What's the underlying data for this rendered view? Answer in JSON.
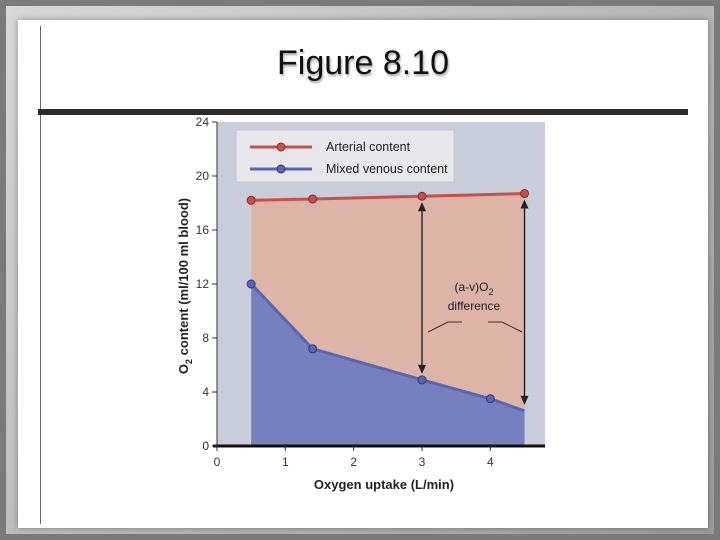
{
  "slide": {
    "title": "Figure 8.10"
  },
  "chart_data": {
    "type": "area",
    "x": [
      0.5,
      1.4,
      3.0,
      4.0,
      4.5
    ],
    "series": [
      {
        "name": "Arterial content",
        "values": [
          18.2,
          18.3,
          18.5,
          null,
          18.7
        ],
        "color": "#c8504c"
      },
      {
        "name": "Mixed venous content",
        "values": [
          12.0,
          7.2,
          4.9,
          3.5,
          null
        ],
        "color": "#5a66b4"
      }
    ],
    "venous_line_end": {
      "x": 4.5,
      "y": 2.6
    },
    "xlabel": "Oxygen uptake (L/min)",
    "ylabel": "O2 content (ml/100 ml blood)",
    "xticks": [
      "0",
      "1",
      "2",
      "3",
      "4"
    ],
    "yticks": [
      "0",
      "4",
      "8",
      "12",
      "16",
      "20",
      "24"
    ],
    "xlim": [
      0,
      4.8
    ],
    "ylim": [
      0,
      24
    ],
    "legend_position": "top-left",
    "grid": false,
    "annotation": {
      "line1": "(a-v)O",
      "subscript": "2",
      "line2": "difference"
    },
    "colors": {
      "plot_bg": "#c9cdd9",
      "diff_fill": "#deb4a8",
      "venous_fill": "#7680bf",
      "arterial": "#c8504c",
      "venous": "#5a66b4"
    }
  }
}
